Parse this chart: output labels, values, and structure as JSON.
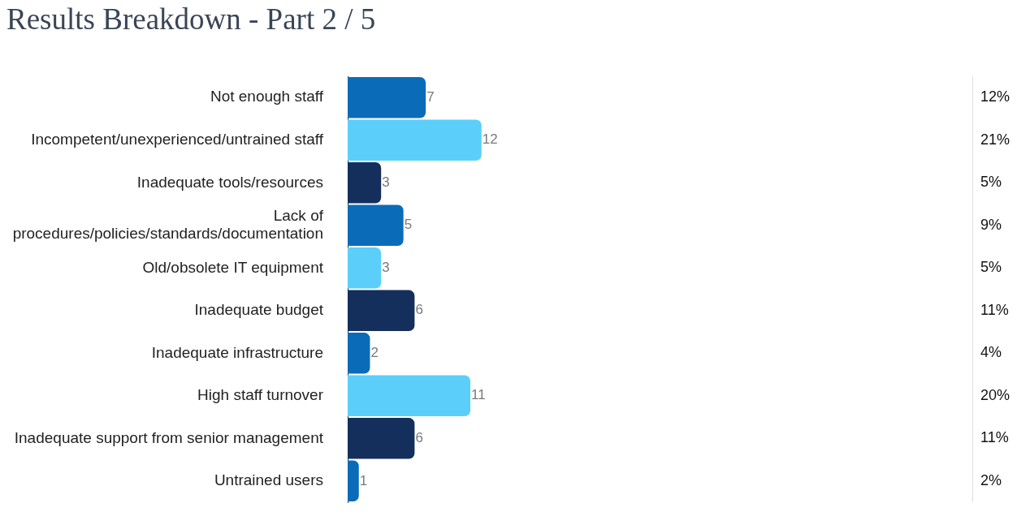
{
  "chart_data": {
    "type": "bar",
    "title": "Results Breakdown - Part 2 / 5",
    "orientation": "horizontal",
    "categories": [
      "Not enough staff",
      "Incompetent/unexperienced/untrained staff",
      "Inadequate tools/resources",
      "Lack of procedures/policies/standards/documentation",
      "Old/obsolete IT equipment",
      "Inadequate budget",
      "Inadequate infrastructure",
      "High staff turnover",
      "Inadequate support from senior management",
      "Untrained users"
    ],
    "values": [
      7,
      12,
      3,
      5,
      3,
      6,
      2,
      11,
      6,
      1
    ],
    "colors": [
      "#0a6cb8",
      "#5bcffa",
      "#142f5c",
      "#0a6cb8",
      "#5bcffa",
      "#142f5c",
      "#0a6cb8",
      "#5bcffa",
      "#142f5c",
      "#0a6cb8"
    ],
    "xlim": [
      0,
      56
    ],
    "data_labels": true,
    "grid": false,
    "legend": false,
    "tick_labels": "y",
    "annotations": [
      "12%",
      "21%",
      "5%",
      "9%",
      "5%",
      "11%",
      "4%",
      "20%",
      "11%",
      "2%"
    ]
  }
}
